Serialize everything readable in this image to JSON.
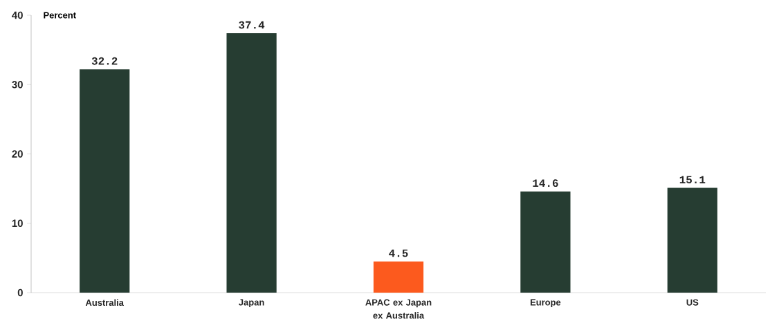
{
  "chart_data": {
    "type": "bar",
    "ylabel": "Percent",
    "categories": [
      "Australia",
      "Japan",
      "APAC ex Japan ex Australia",
      "Europe",
      "US"
    ],
    "values": [
      32.2,
      37.4,
      4.5,
      14.6,
      15.1
    ],
    "colors": [
      "#263d32",
      "#263d32",
      "#fc5a1e",
      "#263d32",
      "#263d32"
    ],
    "ylim": [
      0,
      40
    ],
    "yticks": [
      0,
      10,
      20,
      30,
      40
    ],
    "data_labels": true,
    "grid": false
  }
}
